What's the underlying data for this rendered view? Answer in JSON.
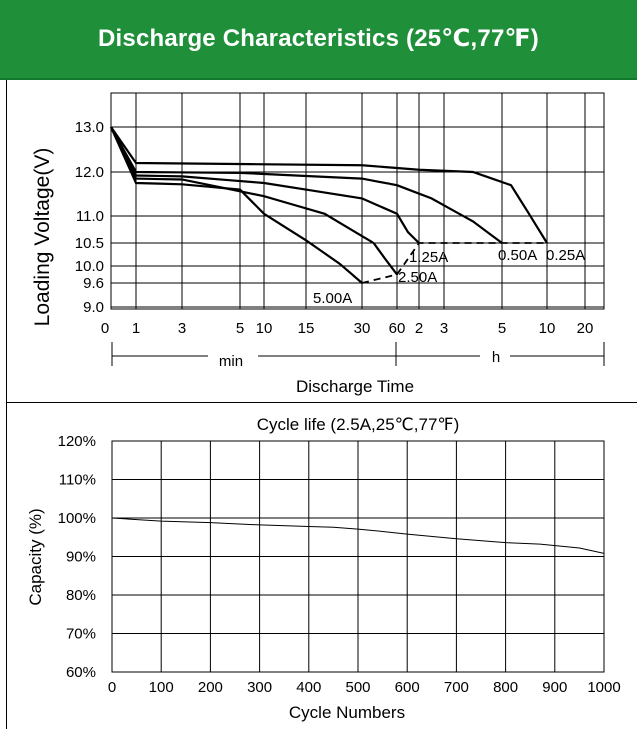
{
  "header": {
    "title": "Discharge Characteristics (25℃,77℉)"
  },
  "chart_data": [
    {
      "type": "line",
      "ylabel": "Loading  Voltage(V)",
      "xlabel": "Discharge Time",
      "y_ticks": [
        "13.0",
        "12.0",
        "11.0",
        "10.5",
        "10.0",
        "9.6",
        "9.0"
      ],
      "x_ticks": [
        "0",
        "1",
        "3",
        "5",
        "10",
        "15",
        "30",
        "60",
        "2",
        "3",
        "5",
        "10",
        "20"
      ],
      "x_units": {
        "min": "min",
        "h": "h"
      },
      "series": [
        {
          "name": "5.00A",
          "points": [
            [
              0,
              13.0
            ],
            [
              1,
              11.75
            ],
            [
              3,
              11.72
            ],
            [
              5,
              11.6
            ],
            [
              10,
              11.05
            ],
            [
              15,
              10.55
            ],
            [
              24,
              10.05
            ],
            [
              30,
              9.6
            ]
          ]
        },
        {
          "name": "2.50A",
          "points": [
            [
              0,
              13.0
            ],
            [
              1,
              11.85
            ],
            [
              3,
              11.83
            ],
            [
              10,
              11.45
            ],
            [
              20,
              11.05
            ],
            [
              40,
              10.5
            ],
            [
              50,
              10.15
            ],
            [
              60,
              9.8
            ]
          ]
        },
        {
          "name": "1.25A",
          "points": [
            [
              0,
              13.0
            ],
            [
              1,
              11.92
            ],
            [
              3,
              11.9
            ],
            [
              10,
              11.75
            ],
            [
              30,
              11.4
            ],
            [
              60,
              11.05
            ],
            [
              90,
              10.7
            ],
            [
              120,
              10.5
            ]
          ]
        },
        {
          "name": "0.50A",
          "points": [
            [
              0,
              13.0
            ],
            [
              1,
              12.0
            ],
            [
              5,
              11.98
            ],
            [
              30,
              11.85
            ],
            [
              60,
              11.7
            ],
            [
              150,
              11.4
            ],
            [
              240,
              10.9
            ],
            [
              300,
              10.5
            ]
          ]
        },
        {
          "name": "0.25A",
          "points": [
            [
              0,
              13.0
            ],
            [
              1,
              12.2
            ],
            [
              30,
              12.15
            ],
            [
              120,
              12.05
            ],
            [
              240,
              12.0
            ],
            [
              360,
              11.7
            ],
            [
              480,
              11.05
            ],
            [
              600,
              10.5
            ]
          ]
        }
      ],
      "end_voltage_line": [
        [
          30,
          9.6
        ],
        [
          60,
          9.8
        ],
        [
          120,
          10.5
        ],
        [
          300,
          10.5
        ],
        [
          600,
          10.5
        ]
      ]
    },
    {
      "type": "line",
      "title": "Cycle life (2.5A,25℃,77℉)",
      "xlabel": "Cycle Numbers",
      "ylabel": "Capacity (%)",
      "xlim": [
        0,
        1000
      ],
      "ylim": [
        60,
        120
      ],
      "x_ticks": [
        "0",
        "100",
        "200",
        "300",
        "400",
        "500",
        "600",
        "700",
        "800",
        "900",
        "1000"
      ],
      "y_ticks": [
        "120%",
        "110%",
        "100%",
        "90%",
        "80%",
        "70%",
        "60%"
      ],
      "series": [
        {
          "x": [
            0,
            100,
            200,
            300,
            400,
            450,
            500,
            550,
            600,
            700,
            800,
            870,
            950,
            1000
          ],
          "y": [
            100,
            99.2,
            98.8,
            98.2,
            97.8,
            97.6,
            97.1,
            96.5,
            95.8,
            94.6,
            93.6,
            93.2,
            92.2,
            90.8
          ]
        }
      ]
    }
  ]
}
